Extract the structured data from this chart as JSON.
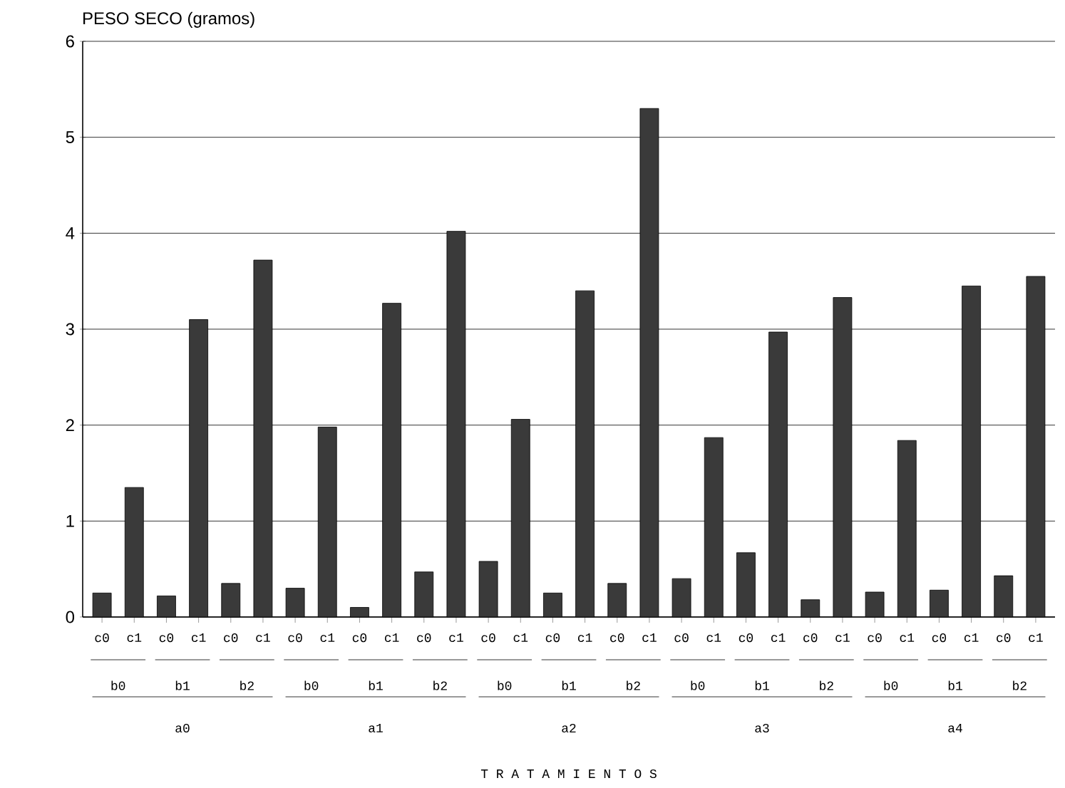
{
  "chart_data": {
    "type": "bar",
    "ylabel": "PESO SECO (gramos)",
    "categories": [
      "c0",
      "c1",
      "c0",
      "c1",
      "c0",
      "c1",
      "c0",
      "c1",
      "c0",
      "c1",
      "c0",
      "c1",
      "c0",
      "c1",
      "c0",
      "c1",
      "c0",
      "c1",
      "c0",
      "c1",
      "c0",
      "c1",
      "c0",
      "c1",
      "c0",
      "c1",
      "c0",
      "c1",
      "c0",
      "c1"
    ],
    "values": [
      0.25,
      1.35,
      0.22,
      3.1,
      0.35,
      3.72,
      0.3,
      1.98,
      0.1,
      3.27,
      0.47,
      4.02,
      0.58,
      2.06,
      0.25,
      3.4,
      0.35,
      5.3,
      0.4,
      1.87,
      0.67,
      2.97,
      0.18,
      3.33,
      0.26,
      1.84,
      0.28,
      3.45,
      0.43,
      3.55
    ],
    "color": "#3a3a3a",
    "ylim": [
      0,
      6
    ],
    "yticks": [
      0,
      1,
      2,
      3,
      4,
      5,
      6
    ],
    "grid": "y",
    "annotations": [
      "b0",
      "b1",
      "b2",
      "b0",
      "b1",
      "b2",
      "b0",
      "b1",
      "b2",
      "b0",
      "b1",
      "b2",
      "b0",
      "b1",
      "b2",
      "a0",
      "a1",
      "a2",
      "a3",
      "a4",
      "T R A T A M I E N T O S"
    ]
  }
}
